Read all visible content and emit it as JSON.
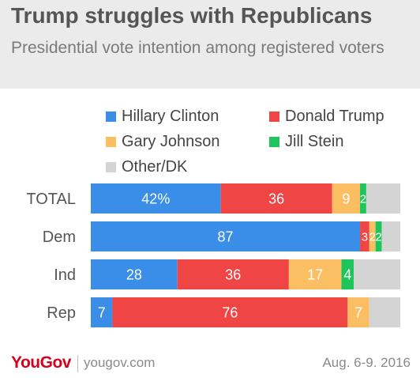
{
  "header": {
    "title": "Trump struggles with Republicans",
    "subtitle": "Presidential vote intention among registered voters"
  },
  "footer": {
    "logo": "YouGov",
    "site": "yougov.com",
    "date": "Aug. 6-9. 2016"
  },
  "colors": {
    "header_bg": "#ebebeb",
    "clinton": "#3a8ee8",
    "trump": "#f04545",
    "johnson": "#fbbe63",
    "stein": "#1ec55a",
    "other": "#d4d4d4",
    "logo": "#d6001c"
  },
  "chart_data": {
    "type": "bar",
    "orientation": "horizontal",
    "stacked": true,
    "categories": [
      "TOTAL",
      "Dem",
      "Ind",
      "Rep"
    ],
    "series": [
      {
        "name": "Hillary Clinton",
        "color": "#3a8ee8",
        "values": [
          42,
          87,
          28,
          7
        ]
      },
      {
        "name": "Donald Trump",
        "color": "#f04545",
        "values": [
          36,
          3,
          36,
          76
        ]
      },
      {
        "name": "Gary Johnson",
        "color": "#fbbe63",
        "values": [
          9,
          2,
          17,
          7
        ]
      },
      {
        "name": "Jill Stein",
        "color": "#1ec55a",
        "values": [
          2,
          2,
          4,
          0
        ]
      },
      {
        "name": "Other/DK",
        "color": "#d4d4d4",
        "values": [
          11,
          6,
          15,
          10
        ]
      }
    ],
    "value_labels": [
      [
        "42%",
        "36",
        "9",
        "2",
        ""
      ],
      [
        "87",
        "3",
        "2",
        "2",
        ""
      ],
      [
        "28",
        "36",
        "17",
        "4",
        ""
      ],
      [
        "7",
        "76",
        "7",
        "",
        ""
      ]
    ],
    "xlim": [
      0,
      100
    ],
    "legend_position": "top",
    "grid": false
  }
}
